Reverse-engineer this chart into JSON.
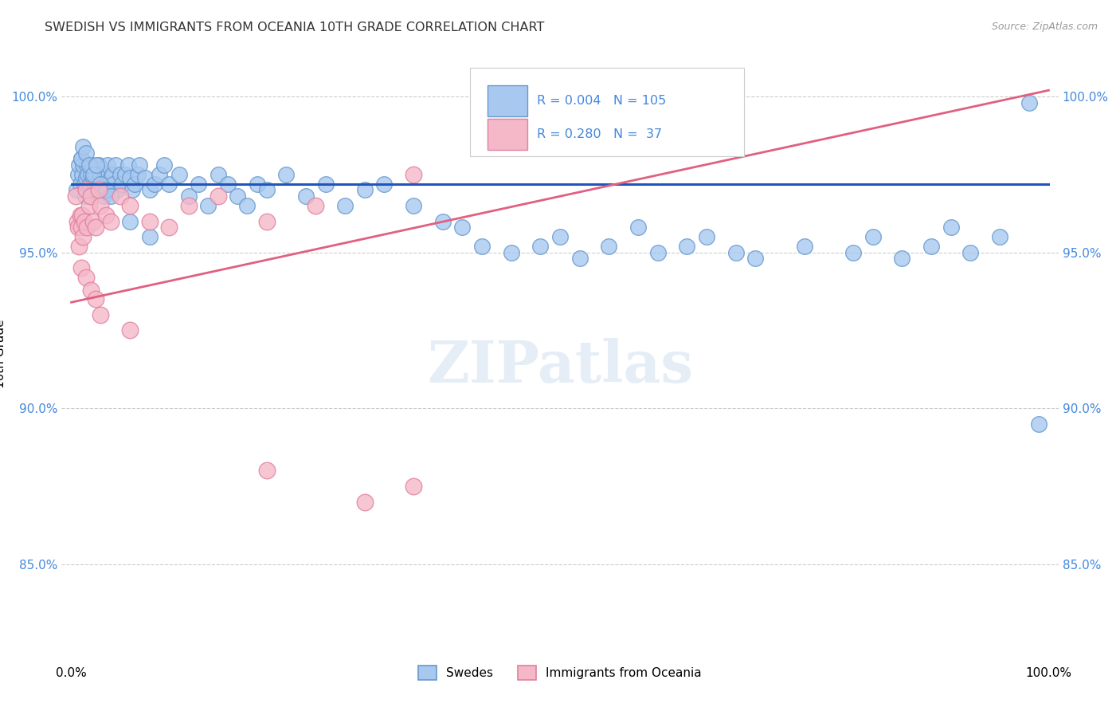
{
  "title": "SWEDISH VS IMMIGRANTS FROM OCEANIA 10TH GRADE CORRELATION CHART",
  "source": "Source: ZipAtlas.com",
  "ylabel": "10th Grade",
  "yticks": [
    0.85,
    0.9,
    0.95,
    1.0
  ],
  "xlim": [
    0.0,
    1.0
  ],
  "ylim": [
    0.82,
    1.015
  ],
  "blue_color": "#A8C8F0",
  "blue_edge_color": "#6699CC",
  "pink_color": "#F5B8C8",
  "pink_edge_color": "#E080A0",
  "blue_line_color": "#2255BB",
  "pink_line_color": "#E06080",
  "legend_label_blue": "Swedes",
  "legend_label_pink": "Immigrants from Oceania",
  "legend_text_color": "#4488DD",
  "tick_color": "#4488DD",
  "grid_color": "#CCCCCC",
  "title_color": "#333333",
  "source_color": "#999999",
  "blue_line_y": 0.972,
  "pink_line_start_y": 0.934,
  "pink_line_end_y": 1.002,
  "blue_scatter_x": [
    0.005,
    0.007,
    0.008,
    0.009,
    0.01,
    0.011,
    0.012,
    0.013,
    0.014,
    0.015,
    0.016,
    0.017,
    0.018,
    0.019,
    0.02,
    0.021,
    0.022,
    0.023,
    0.024,
    0.025,
    0.026,
    0.027,
    0.028,
    0.029,
    0.03,
    0.031,
    0.032,
    0.033,
    0.034,
    0.035,
    0.036,
    0.037,
    0.038,
    0.04,
    0.042,
    0.043,
    0.045,
    0.047,
    0.05,
    0.052,
    0.055,
    0.058,
    0.06,
    0.062,
    0.065,
    0.068,
    0.07,
    0.075,
    0.08,
    0.085,
    0.09,
    0.095,
    0.1,
    0.11,
    0.12,
    0.13,
    0.14,
    0.15,
    0.16,
    0.17,
    0.18,
    0.19,
    0.2,
    0.22,
    0.24,
    0.26,
    0.28,
    0.3,
    0.32,
    0.35,
    0.38,
    0.4,
    0.42,
    0.45,
    0.48,
    0.5,
    0.52,
    0.55,
    0.58,
    0.6,
    0.63,
    0.65,
    0.68,
    0.7,
    0.75,
    0.8,
    0.82,
    0.85,
    0.88,
    0.9,
    0.92,
    0.95,
    0.98,
    0.99,
    0.01,
    0.012,
    0.015,
    0.018,
    0.022,
    0.026,
    0.03,
    0.035,
    0.04,
    0.06,
    0.08
  ],
  "blue_scatter_y": [
    0.97,
    0.975,
    0.978,
    0.972,
    0.98,
    0.975,
    0.978,
    0.972,
    0.968,
    0.974,
    0.978,
    0.975,
    0.97,
    0.972,
    0.975,
    0.978,
    0.974,
    0.97,
    0.972,
    0.975,
    0.97,
    0.972,
    0.978,
    0.974,
    0.975,
    0.972,
    0.97,
    0.968,
    0.974,
    0.972,
    0.975,
    0.978,
    0.97,
    0.974,
    0.975,
    0.972,
    0.978,
    0.97,
    0.975,
    0.972,
    0.975,
    0.978,
    0.974,
    0.97,
    0.972,
    0.975,
    0.978,
    0.974,
    0.97,
    0.972,
    0.975,
    0.978,
    0.972,
    0.975,
    0.968,
    0.972,
    0.965,
    0.975,
    0.972,
    0.968,
    0.965,
    0.972,
    0.97,
    0.975,
    0.968,
    0.972,
    0.965,
    0.97,
    0.972,
    0.965,
    0.96,
    0.958,
    0.952,
    0.95,
    0.952,
    0.955,
    0.948,
    0.952,
    0.958,
    0.95,
    0.952,
    0.955,
    0.95,
    0.948,
    0.952,
    0.95,
    0.955,
    0.948,
    0.952,
    0.958,
    0.95,
    0.955,
    0.998,
    0.895,
    0.98,
    0.984,
    0.982,
    0.978,
    0.975,
    0.978,
    0.972,
    0.97,
    0.968,
    0.96,
    0.955
  ],
  "pink_scatter_x": [
    0.004,
    0.006,
    0.007,
    0.008,
    0.009,
    0.01,
    0.011,
    0.012,
    0.013,
    0.015,
    0.016,
    0.018,
    0.02,
    0.022,
    0.025,
    0.028,
    0.03,
    0.035,
    0.04,
    0.05,
    0.06,
    0.08,
    0.1,
    0.12,
    0.15,
    0.2,
    0.25,
    0.3,
    0.35,
    0.01,
    0.015,
    0.02,
    0.025,
    0.03,
    0.06,
    0.2,
    0.35
  ],
  "pink_scatter_y": [
    0.968,
    0.96,
    0.958,
    0.952,
    0.962,
    0.958,
    0.962,
    0.955,
    0.96,
    0.97,
    0.958,
    0.965,
    0.968,
    0.96,
    0.958,
    0.97,
    0.965,
    0.962,
    0.96,
    0.968,
    0.965,
    0.96,
    0.958,
    0.965,
    0.968,
    0.96,
    0.965,
    0.87,
    0.975,
    0.945,
    0.942,
    0.938,
    0.935,
    0.93,
    0.925,
    0.88,
    0.875
  ]
}
